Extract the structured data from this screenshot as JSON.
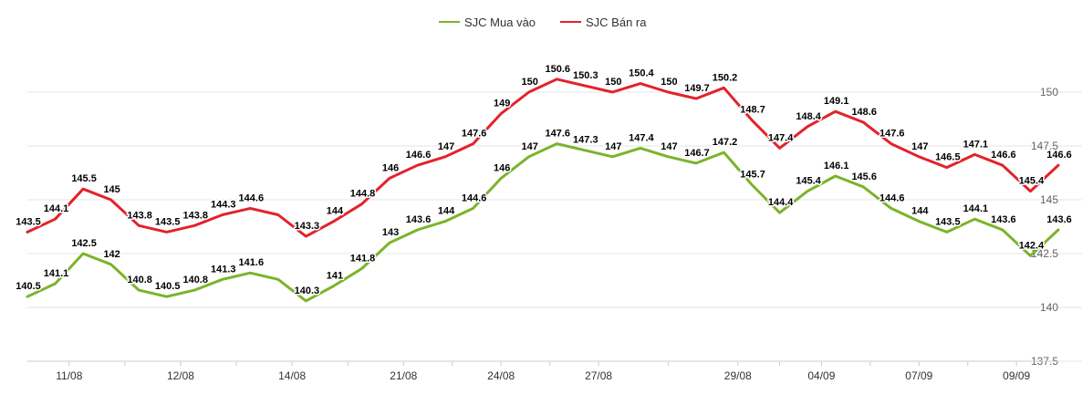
{
  "chart_data": {
    "type": "line",
    "title": "",
    "xlabel": "",
    "ylabel": "",
    "ylim": [
      137.5,
      152.5
    ],
    "y_ticks": [
      "137.5",
      "140",
      "142.5",
      "145",
      "147.5",
      "150"
    ],
    "y_tick_values": [
      137.5,
      140,
      142.5,
      145,
      147.5,
      150
    ],
    "grid": true,
    "legend_position": "top-center",
    "x_tick_labels": [
      "11/08",
      "12/08",
      "14/08",
      "21/08",
      "24/08",
      "27/08",
      "29/08",
      "04/09",
      "07/09",
      "09/09"
    ],
    "x_tick_indices": [
      1.5,
      5.5,
      9.5,
      13.5,
      17,
      20.5,
      25.5,
      28.5,
      32,
      35.5
    ],
    "series": [
      {
        "name": "SJC Mua vào",
        "color": "#7cb32a",
        "values": [
          140.5,
          141.1,
          142.5,
          142,
          140.8,
          140.5,
          140.8,
          141.3,
          141.6,
          141.3,
          140.3,
          141,
          141.8,
          143,
          143.6,
          144,
          144.6,
          146,
          147,
          147.6,
          147.3,
          147,
          147.4,
          147,
          146.7,
          147.2,
          145.7,
          144.4,
          145.4,
          146.1,
          145.6,
          144.6,
          144,
          143.5,
          144.1,
          143.6,
          142.4,
          143.6
        ],
        "labels": [
          "140.5",
          "141.1",
          "142.5",
          "142",
          "140.8",
          "140.5",
          "140.8",
          "141.3",
          "141.6",
          "",
          "140.3",
          "141",
          "141.8",
          "143",
          "143.6",
          "144",
          "144.6",
          "146",
          "147",
          "147.6",
          "147.3",
          "147",
          "147.4",
          "147",
          "146.7",
          "147.2",
          "145.7",
          "144.4",
          "145.4",
          "146.1",
          "145.6",
          "144.6",
          "144",
          "143.5",
          "144.1",
          "143.6",
          "142.4",
          "143.6"
        ]
      },
      {
        "name": "SJC Bán ra",
        "color": "#e3222b",
        "values": [
          143.5,
          144.1,
          145.5,
          145,
          143.8,
          143.5,
          143.8,
          144.3,
          144.6,
          144.3,
          143.3,
          144,
          144.8,
          146,
          146.6,
          147,
          147.6,
          149,
          150,
          150.6,
          150.3,
          150,
          150.4,
          150,
          149.7,
          150.2,
          148.7,
          147.4,
          148.4,
          149.1,
          148.6,
          147.6,
          147,
          146.5,
          147.1,
          146.6,
          145.4,
          146.6
        ],
        "labels": [
          "143.5",
          "144.1",
          "145.5",
          "145",
          "143.8",
          "143.5",
          "143.8",
          "144.3",
          "144.6",
          "",
          "143.3",
          "144",
          "144.8",
          "146",
          "146.6",
          "147",
          "147.6",
          "149",
          "150",
          "150.6",
          "150.3",
          "150",
          "150.4",
          "150",
          "149.7",
          "150.2",
          "148.7",
          "147.4",
          "148.4",
          "149.1",
          "148.6",
          "147.6",
          "147",
          "146.5",
          "147.1",
          "146.6",
          "145.4",
          "146.6"
        ]
      }
    ]
  }
}
